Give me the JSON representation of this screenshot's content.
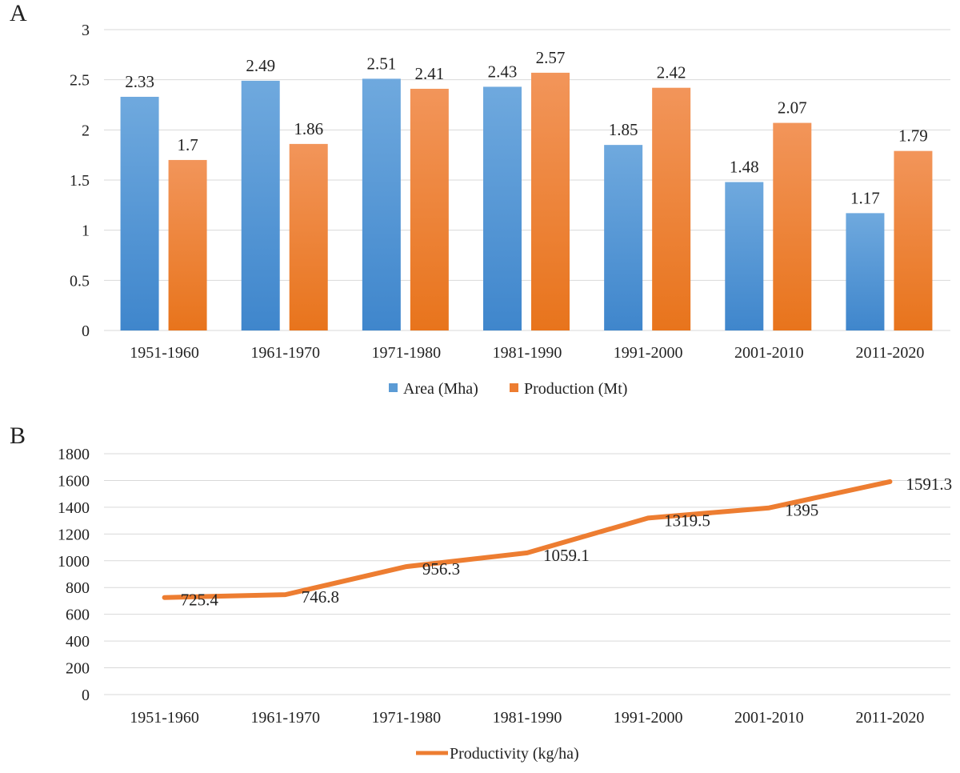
{
  "panels": {
    "a_label": "A",
    "b_label": "B"
  },
  "colors": {
    "area": "#5b9bd5",
    "area_light": "#6aa7e0",
    "production": "#ed7d31",
    "production_light": "#f4a16e",
    "line": "#ed7d31",
    "grid": "#d9d9d9"
  },
  "chart_data": [
    {
      "type": "bar",
      "panel": "A",
      "categories": [
        "1951-1960",
        "1961-1970",
        "1971-1980",
        "1981-1990",
        "1991-2000",
        "2001-2010",
        "2011-2020"
      ],
      "series": [
        {
          "name": "Area (Mha)",
          "values": [
            2.33,
            2.49,
            2.51,
            2.43,
            1.85,
            1.48,
            1.17
          ],
          "labels": [
            "2.33",
            "2.49",
            "2.51",
            "2.43",
            "1.85",
            "1.48",
            "1.17"
          ]
        },
        {
          "name": "Production (Mt)",
          "values": [
            1.7,
            1.86,
            2.41,
            2.57,
            2.42,
            2.07,
            1.79
          ],
          "labels": [
            "1.7",
            "1.86",
            "2.41",
            "2.57",
            "2.42",
            "2.07",
            "1.79"
          ]
        }
      ],
      "ylim": [
        0,
        3
      ],
      "yticks": [
        "0",
        "0.5",
        "1",
        "1.5",
        "2",
        "2.5",
        "3"
      ],
      "grid": true,
      "legend": "bottom"
    },
    {
      "type": "line",
      "panel": "B",
      "categories": [
        "1951-1960",
        "1961-1970",
        "1971-1980",
        "1981-1990",
        "1991-2000",
        "2001-2010",
        "2011-2020"
      ],
      "series": [
        {
          "name": "Productivity (kg/ha)",
          "values": [
            725.4,
            746.8,
            956.3,
            1059.1,
            1319.5,
            1395,
            1591.3
          ],
          "labels": [
            "725.4",
            "746.8",
            "956.3",
            "1059.1",
            "1319.5",
            "1395",
            "1591.3"
          ]
        }
      ],
      "ylim": [
        0,
        1800
      ],
      "yticks": [
        "0",
        "200",
        "400",
        "600",
        "800",
        "1000",
        "1200",
        "1400",
        "1600",
        "1800"
      ],
      "grid": true,
      "legend": "bottom"
    }
  ]
}
